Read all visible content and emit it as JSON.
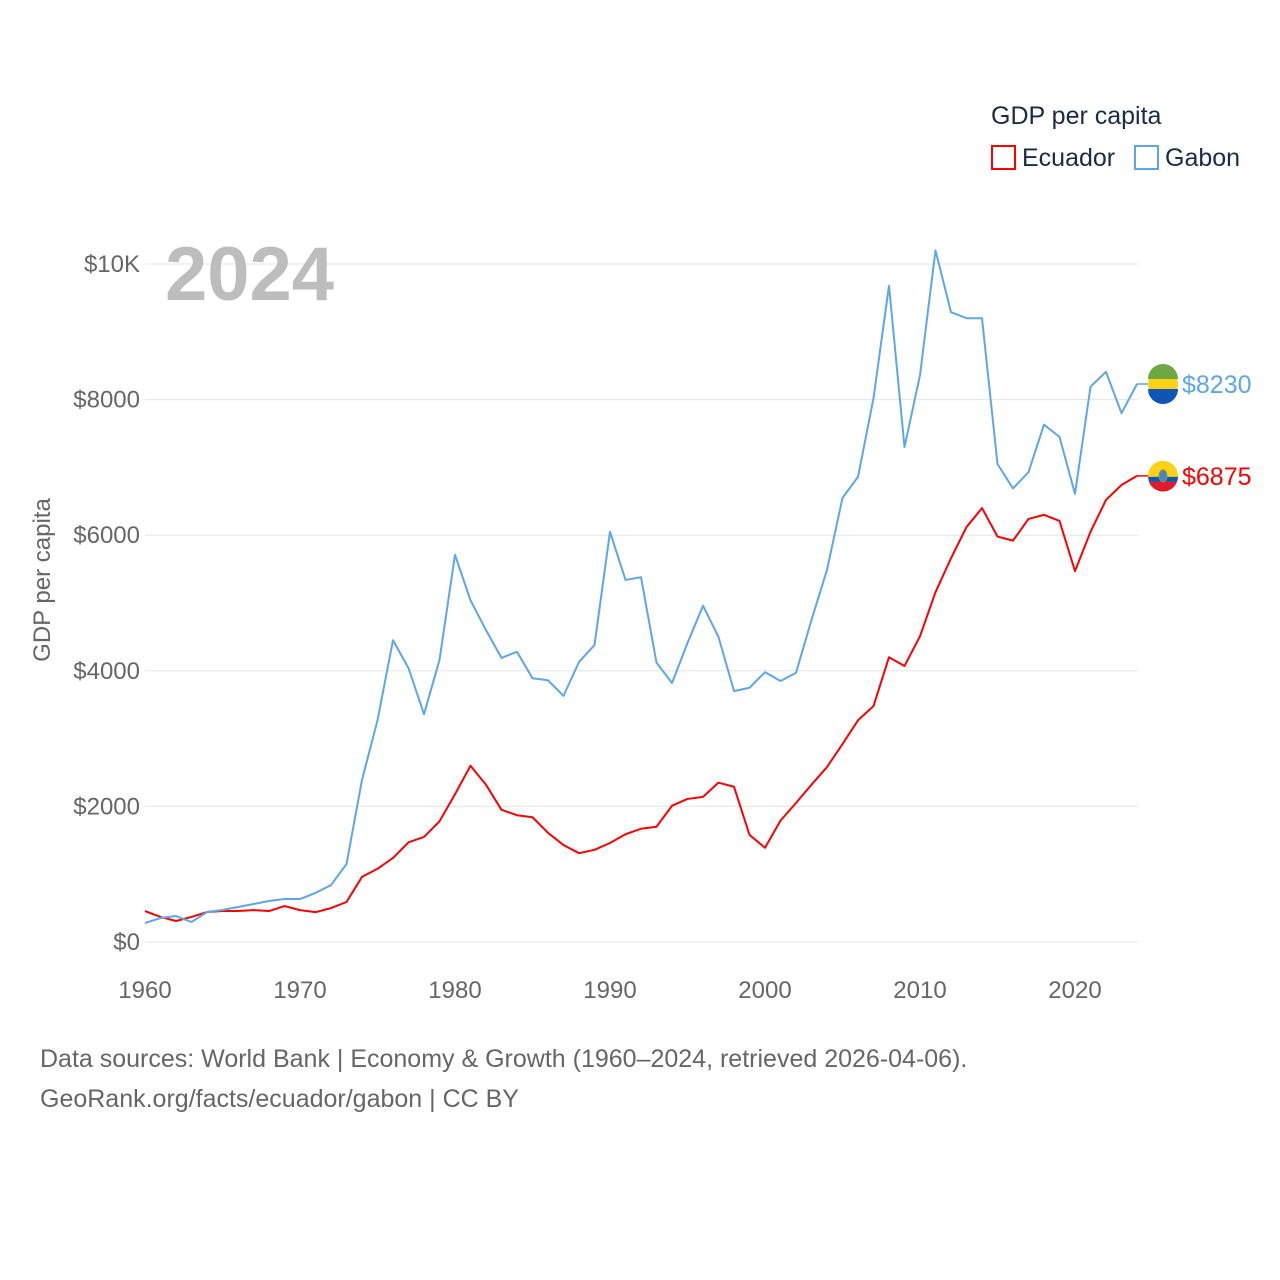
{
  "chart_data": {
    "type": "line",
    "year_label": "2024",
    "ylabel": "GDP per capita",
    "legend_title": "GDP per capita",
    "legend_position": "top-right",
    "ylim": [
      0,
      10000
    ],
    "xlim": [
      1960,
      2024
    ],
    "y_ticks": [
      {
        "v": 0,
        "label": "$0"
      },
      {
        "v": 2000,
        "label": "$2000"
      },
      {
        "v": 4000,
        "label": "$4000"
      },
      {
        "v": 6000,
        "label": "$6000"
      },
      {
        "v": 8000,
        "label": "$8000"
      },
      {
        "v": 10000,
        "label": "$10K"
      }
    ],
    "x_ticks": [
      1960,
      1970,
      1980,
      1990,
      2000,
      2010,
      2020
    ],
    "series": [
      {
        "name": "Ecuador",
        "color": "#ff0000",
        "end_label": "$6875",
        "flag": "ecuador-flag",
        "values": [
          457,
          370,
          310,
          370,
          442,
          457,
          457,
          470,
          457,
          530,
          470,
          440,
          500,
          590,
          960,
          1080,
          1240,
          1470,
          1550,
          1780,
          2180,
          2600,
          2320,
          1950,
          1870,
          1840,
          1610,
          1430,
          1310,
          1360,
          1460,
          1590,
          1670,
          1700,
          2010,
          2110,
          2140,
          2350,
          2290,
          1580,
          1390,
          1790,
          2050,
          2320,
          2580,
          2920,
          3270,
          3480,
          4200,
          4070,
          4510,
          5160,
          5660,
          6120,
          6400,
          5980,
          5920,
          6240,
          6300,
          6210,
          5470,
          6050,
          6520,
          6740,
          6875
        ]
      },
      {
        "name": "Gabon",
        "color": "#5ea6ec",
        "end_label": "$8230",
        "flag": "gabon-flag",
        "values": [
          280,
          354,
          383,
          295,
          442,
          472,
          516,
          560,
          605,
          634,
          634,
          723,
          840,
          1150,
          2390,
          3270,
          4450,
          4040,
          3360,
          4160,
          5710,
          5040,
          4600,
          4190,
          4280,
          3890,
          3860,
          3630,
          4130,
          4380,
          6050,
          5340,
          5380,
          4120,
          3820,
          4410,
          4960,
          4500,
          3700,
          3750,
          3980,
          3850,
          3970,
          4750,
          5490,
          6550,
          6860,
          8020,
          9680,
          7300,
          8360,
          10200,
          9290,
          9200,
          9200,
          7050,
          6690,
          6930,
          7630,
          7450,
          6610,
          8190,
          8410,
          7800,
          8230
        ]
      }
    ]
  },
  "footer": {
    "line1": "Data sources: World Bank | Economy & Growth (1960–2024, retrieved 2026-04-06).",
    "line2": "GeoRank.org/facts/ecuador/gabon | CC BY"
  }
}
